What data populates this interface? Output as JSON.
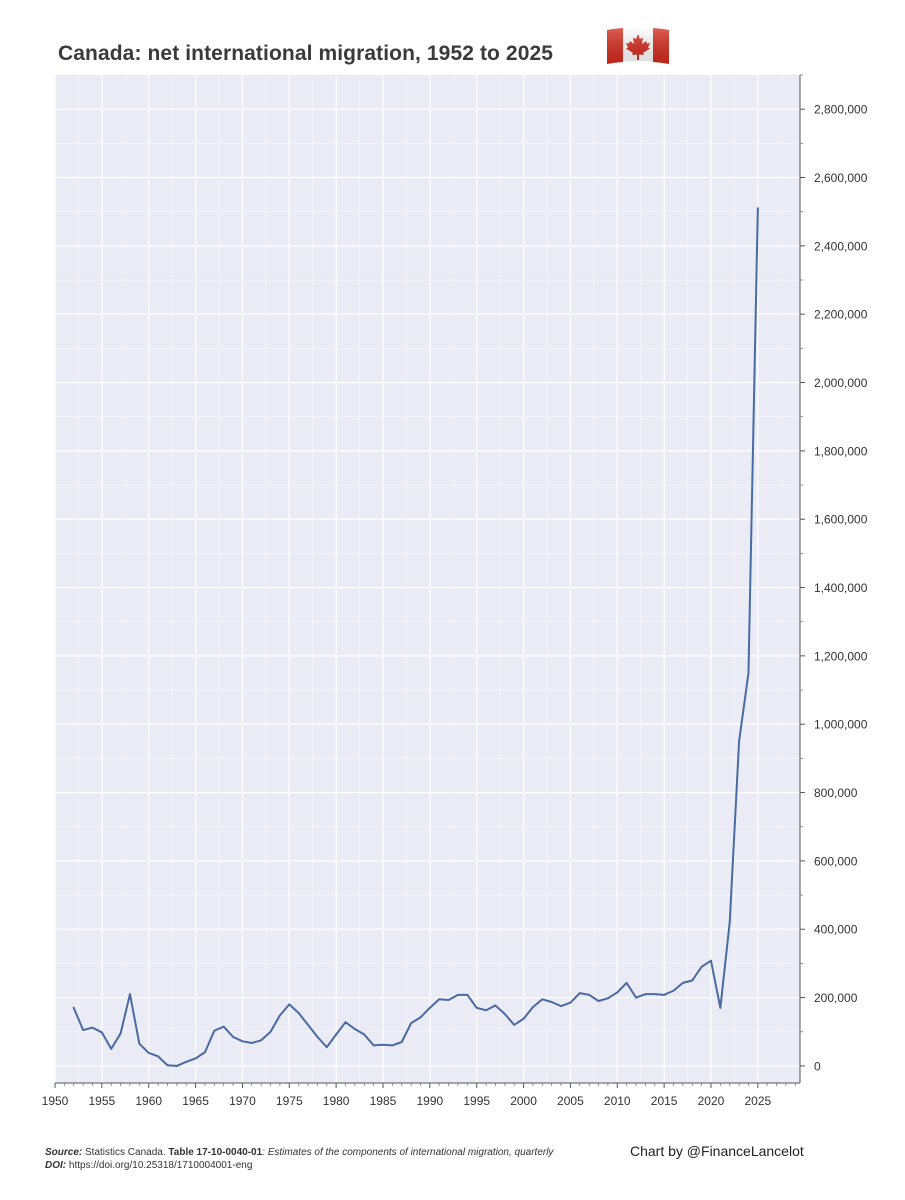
{
  "title": "Canada: net international migration, 1952 to 2025",
  "flag_icon": "canada-flag-icon",
  "colors": {
    "plot_bg": "#eaebf5",
    "grid": "#ffffff",
    "line": "#4a6aa3",
    "flag_red": "#d52b1e"
  },
  "footer": {
    "source_label": "Source:",
    "source_org": "Statistics Canada.",
    "table_id": "Table 17-10-0040-01",
    "table_desc": ": Estimates of the components of international migration, quarterly",
    "doi_label": "DOI:",
    "doi_value": "https://doi.org/10.25318/1710004001-eng",
    "credit": "Chart by @FinanceLancelot"
  },
  "chart_data": {
    "type": "line",
    "title": "Canada: net international migration, 1952 to 2025",
    "xlabel": "",
    "ylabel": "",
    "xlim": [
      1950,
      2029.5
    ],
    "ylim": [
      -50000,
      2900000
    ],
    "y_axis_side": "right",
    "grid": true,
    "legend": "none",
    "x_ticks": [
      1950,
      1955,
      1960,
      1965,
      1970,
      1975,
      1980,
      1985,
      1990,
      1995,
      2000,
      2005,
      2010,
      2015,
      2020,
      2025
    ],
    "x_tick_labels": [
      "1950",
      "1955",
      "1960",
      "1965",
      "1970",
      "1975",
      "1980",
      "1985",
      "1990",
      "1995",
      "2000",
      "2005",
      "2010",
      "2015",
      "2020",
      "2025"
    ],
    "y_ticks": [
      0,
      200000,
      400000,
      600000,
      800000,
      1000000,
      1200000,
      1400000,
      1600000,
      1800000,
      2000000,
      2200000,
      2400000,
      2600000,
      2800000
    ],
    "y_tick_labels": [
      "0",
      "200,000",
      "400,000",
      "600,000",
      "800,000",
      "1,000,000",
      "1,200,000",
      "1,400,000",
      "1,600,000",
      "1,800,000",
      "2,000,000",
      "2,200,000",
      "2,400,000",
      "2,600,000",
      "2,800,000"
    ],
    "series": [
      {
        "x": [
          1952,
          1953,
          1954,
          1955,
          1956,
          1957,
          1958,
          1959,
          1960,
          1961,
          1962,
          1963,
          1964,
          1965,
          1966,
          1967,
          1968,
          1969,
          1970,
          1971,
          1972,
          1973,
          1974,
          1975,
          1976,
          1977,
          1978,
          1979,
          1980,
          1981,
          1982,
          1983,
          1984,
          1985,
          1986,
          1987,
          1988,
          1989,
          1990,
          1991,
          1992,
          1993,
          1994,
          1995,
          1996,
          1997,
          1998,
          1999,
          2000,
          2001,
          2002,
          2003,
          2004,
          2005,
          2006,
          2007,
          2008,
          2009,
          2010,
          2011,
          2012,
          2013,
          2014,
          2015,
          2016,
          2017,
          2018,
          2019,
          2020,
          2021,
          2022,
          2023,
          2024,
          2025
        ],
        "y": [
          170000,
          105000,
          112000,
          98000,
          50000,
          95000,
          210000,
          65000,
          38000,
          28000,
          2000,
          0,
          12000,
          22000,
          40000,
          103000,
          115000,
          85000,
          72000,
          67000,
          75000,
          100000,
          148000,
          180000,
          155000,
          120000,
          85000,
          55000,
          92000,
          128000,
          108000,
          92000,
          60000,
          62000,
          60000,
          70000,
          125000,
          142000,
          170000,
          195000,
          193000,
          208000,
          208000,
          170000,
          163000,
          177000,
          152000,
          120000,
          138000,
          172000,
          195000,
          187000,
          175000,
          185000,
          213000,
          208000,
          190000,
          198000,
          215000,
          243000,
          200000,
          210000,
          210000,
          208000,
          220000,
          243000,
          250000,
          290000,
          308000,
          170000,
          420000,
          950000,
          1150000,
          2510000
        ]
      }
    ]
  }
}
